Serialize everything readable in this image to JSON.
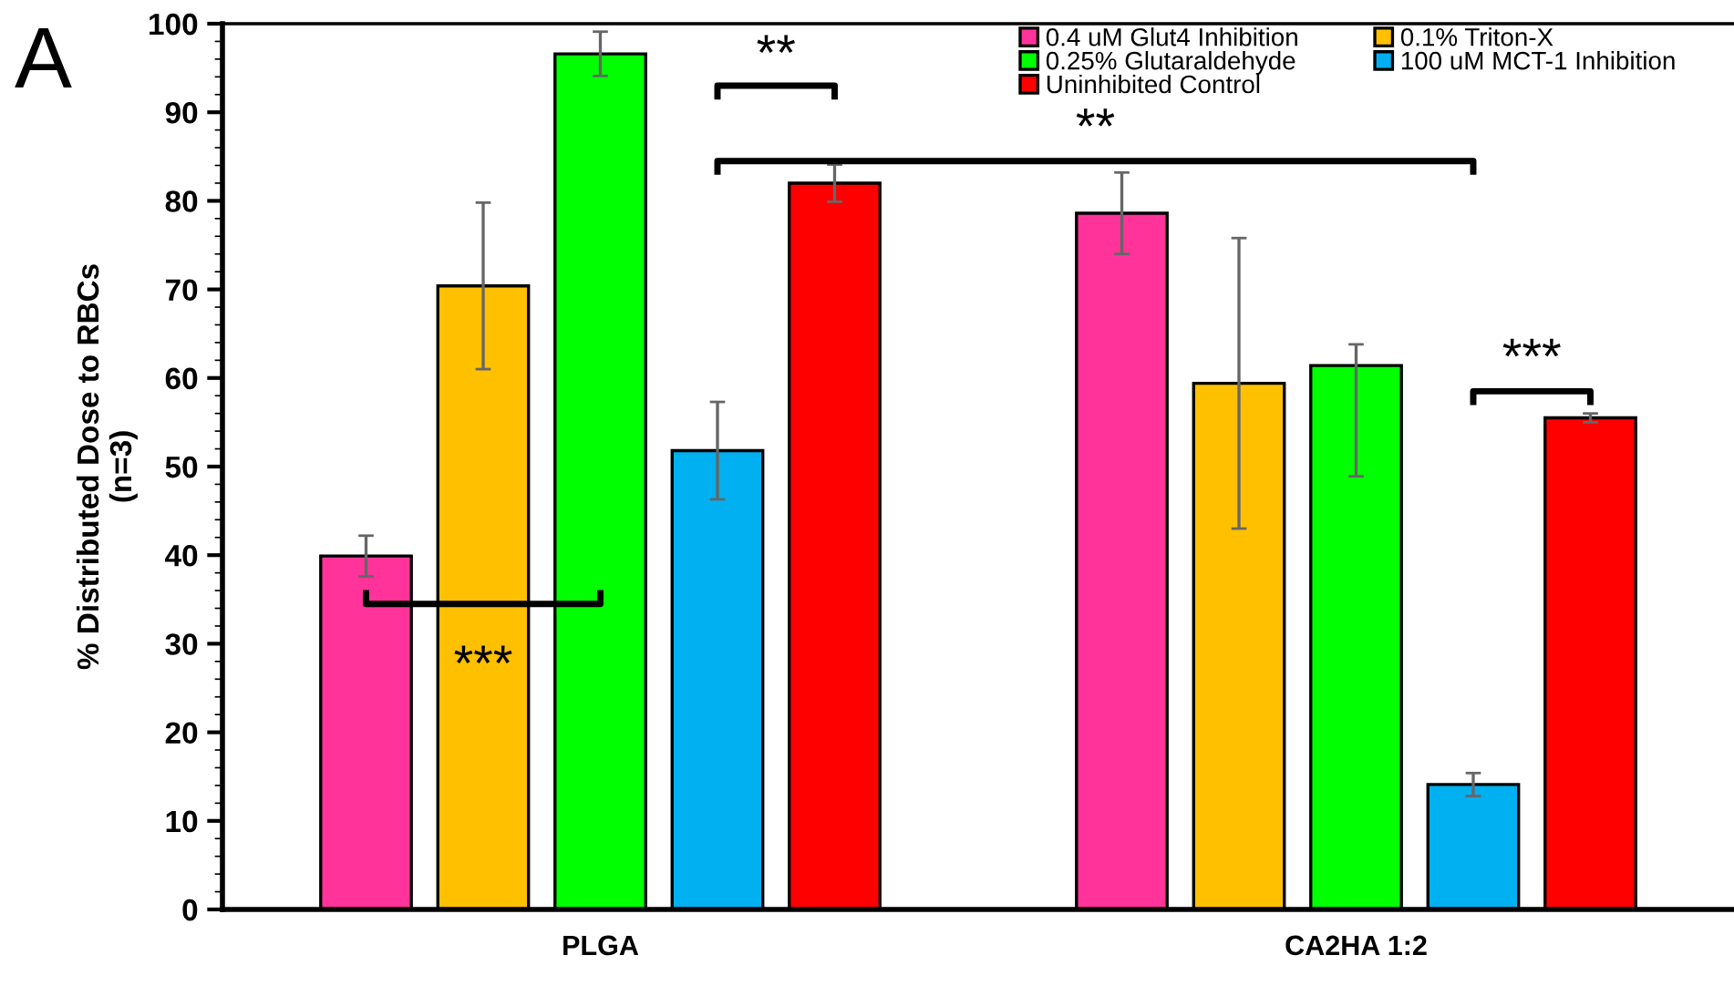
{
  "chart_data": {
    "type": "bar",
    "categories": [
      "PLGA",
      "CA2HA 1:2"
    ],
    "ylabel": "% Distributed Dose to RBCs\n(n=3)",
    "series": [
      {
        "name": "0.4 uM Glut4 Inhibition",
        "color": "#ff3399",
        "values": [
          39.9,
          78.6
        ],
        "errors": [
          2.3,
          4.6
        ]
      },
      {
        "name": "0.1% Triton-X",
        "color": "#ffc000",
        "values": [
          70.4,
          59.4
        ],
        "errors": [
          9.4,
          16.4
        ]
      },
      {
        "name": "0.25% Glutaraldehyde",
        "color": "#00ff00",
        "values": [
          96.6,
          61.4
        ],
        "errors": [
          2.5,
          [
            48.9,
            63.8
          ]
        ]
      },
      {
        "name": "100 uM MCT-1 Inhibition",
        "color": "#00b0f0",
        "values": [
          51.8,
          14.1
        ],
        "errors": [
          5.5,
          1.3
        ]
      },
      {
        "name": "Uninhibited Control",
        "color": "#ff0000",
        "values": [
          82.0,
          55.5
        ],
        "errors": [
          2.1,
          0.5
        ]
      }
    ],
    "ylim": [
      0,
      100
    ],
    "yticks": [
      0,
      10,
      20,
      30,
      40,
      50,
      60,
      70,
      80,
      90,
      100
    ],
    "grid": false,
    "legend": "top right",
    "annotations": [
      "A",
      "***",
      "**",
      "**",
      "***"
    ]
  }
}
